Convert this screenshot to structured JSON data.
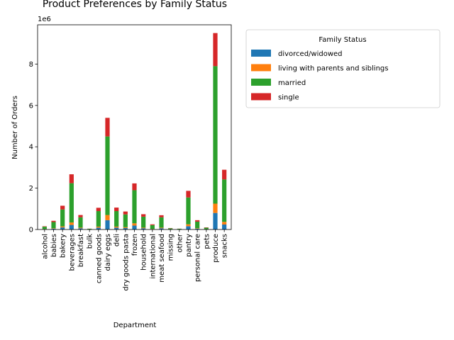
{
  "chart_data": {
    "type": "bar",
    "stacked": true,
    "title": "Product Preferences by Family Status",
    "xlabel": "Department",
    "ylabel": "Number of Orders",
    "y_offset_text": "1e6",
    "y_multiplier": 1000000,
    "ylim": [
      0,
      9.9
    ],
    "yticks": [
      0,
      2,
      4,
      6,
      8
    ],
    "grid": false,
    "legend": {
      "title": "Family Status",
      "placement": "outside-right"
    },
    "categories": [
      "alcohol",
      "babies",
      "bakery",
      "beverages",
      "breakfast",
      "bulk",
      "canned goods",
      "dairy eggs",
      "deli",
      "dry goods pasta",
      "frozen",
      "household",
      "international",
      "meat seafood",
      "missing",
      "other",
      "pantry",
      "personal care",
      "pets",
      "produce",
      "snacks"
    ],
    "series": [
      {
        "name": "divorced/widowed",
        "color": "#1f77b4",
        "values": [
          0.015,
          0.04,
          0.1,
          0.22,
          0.06,
          0.004,
          0.09,
          0.45,
          0.09,
          0.07,
          0.19,
          0.06,
          0.02,
          0.06,
          0.006,
          0.004,
          0.16,
          0.04,
          0.01,
          0.8,
          0.24
        ]
      },
      {
        "name": "living with parents and siblings",
        "color": "#ff7f0e",
        "values": [
          0.01,
          0.02,
          0.05,
          0.12,
          0.03,
          0.002,
          0.05,
          0.25,
          0.05,
          0.04,
          0.11,
          0.03,
          0.01,
          0.03,
          0.003,
          0.002,
          0.09,
          0.02,
          0.005,
          0.45,
          0.13
        ]
      },
      {
        "name": "married",
        "color": "#2ca02c",
        "values": [
          0.11,
          0.3,
          0.82,
          1.9,
          0.5,
          0.03,
          0.75,
          3.8,
          0.75,
          0.62,
          1.6,
          0.53,
          0.18,
          0.5,
          0.05,
          0.03,
          1.3,
          0.32,
          0.07,
          6.65,
          2.05
        ]
      },
      {
        "name": "single",
        "color": "#d62728",
        "values": [
          0.02,
          0.06,
          0.18,
          0.43,
          0.11,
          0.004,
          0.16,
          0.9,
          0.17,
          0.14,
          0.33,
          0.12,
          0.04,
          0.1,
          0.011,
          0.004,
          0.32,
          0.07,
          0.015,
          1.6,
          0.47
        ]
      }
    ]
  }
}
